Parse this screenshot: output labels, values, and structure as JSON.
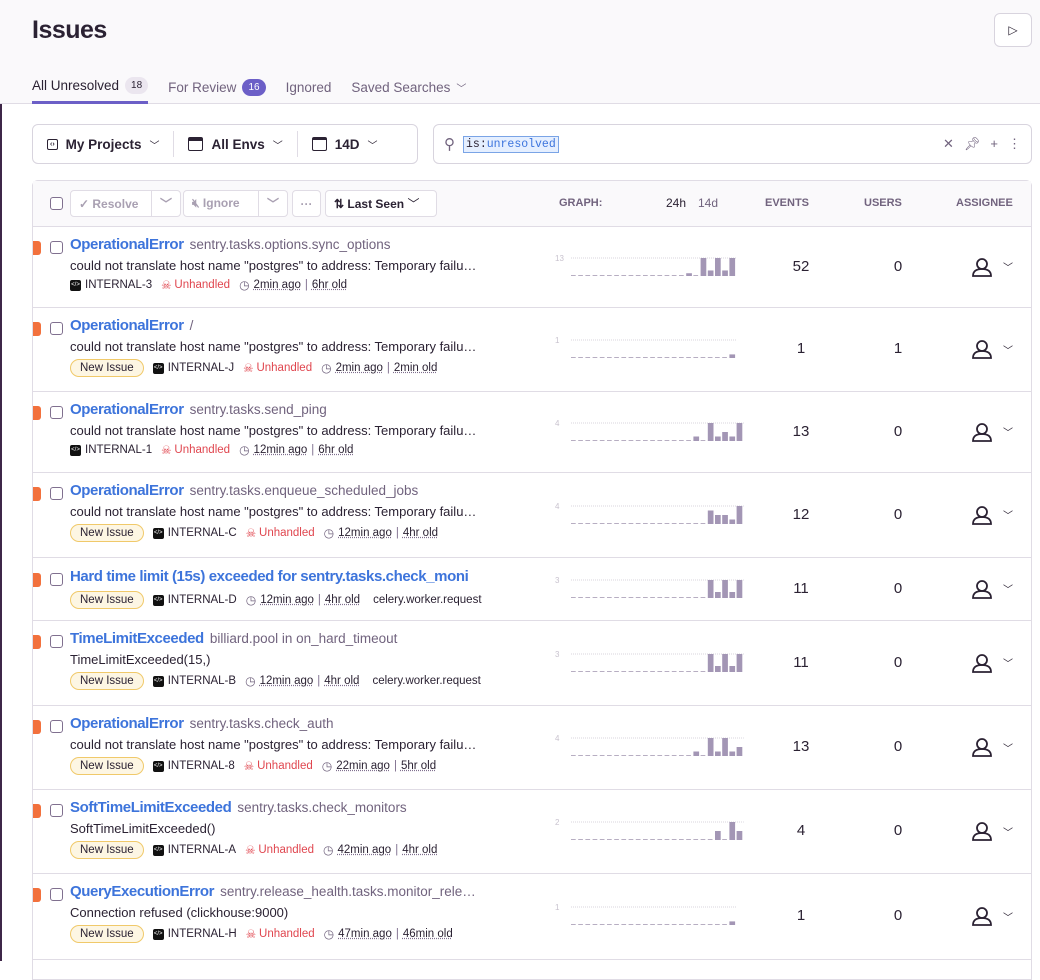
{
  "header": {
    "title": "Issues"
  },
  "tabs": [
    {
      "label": "All Unresolved",
      "count": "18",
      "active": true
    },
    {
      "label": "For Review",
      "count": "16"
    },
    {
      "label": "Ignored"
    },
    {
      "label": "Saved Searches"
    }
  ],
  "filters": {
    "projects": "My Projects",
    "envs": "All Envs",
    "period": "14D"
  },
  "search": {
    "key": "is",
    "sep": ":",
    "value": "unresolved"
  },
  "actions": {
    "resolve": "Resolve",
    "ignore": "Ignore",
    "more": "···",
    "sort": "Last Seen"
  },
  "columns": {
    "graph": "GRAPH:",
    "period_24h": "24h",
    "period_14d": "14d",
    "events": "EVENTS",
    "users": "USERS",
    "assignee": "ASSIGNEE"
  },
  "colors": {
    "accent": "#6c5fc7",
    "link": "#3d74db",
    "error_level": "#f2713d",
    "unhandled": "#e0464f"
  },
  "issues": [
    {
      "title": "OperationalError",
      "location": "sentry.tasks.options.sync_options",
      "message": "could not translate host name \"postgres\" to address: Temporary failu…",
      "new": false,
      "short_id": "INTERNAL-3",
      "unhandled": "Unhandled",
      "last_seen": "2min ago",
      "age": "6hr old",
      "tag": "",
      "events": "52",
      "users": "0",
      "graph_max": "13",
      "graph": [
        0,
        0,
        0,
        0,
        0,
        0,
        0,
        0,
        0,
        0,
        0,
        0,
        0,
        0,
        0,
        0,
        2,
        0,
        13,
        4,
        13,
        4,
        13
      ]
    },
    {
      "title": "OperationalError",
      "location": "/",
      "message": "could not translate host name \"postgres\" to address: Temporary failu…",
      "new": true,
      "short_id": "INTERNAL-J",
      "unhandled": "Unhandled",
      "last_seen": "2min ago",
      "age": "2min old",
      "tag": "",
      "events": "1",
      "users": "1",
      "graph_max": "1",
      "graph": [
        0,
        0,
        0,
        0,
        0,
        0,
        0,
        0,
        0,
        0,
        0,
        0,
        0,
        0,
        0,
        0,
        0,
        0,
        0,
        0,
        0,
        0,
        0.2
      ]
    },
    {
      "title": "OperationalError",
      "location": "sentry.tasks.send_ping",
      "message": "could not translate host name \"postgres\" to address: Temporary failu…",
      "new": false,
      "short_id": "INTERNAL-1",
      "unhandled": "Unhandled",
      "last_seen": "12min ago",
      "age": "6hr old",
      "tag": "",
      "events": "13",
      "users": "0",
      "graph_max": "4",
      "graph": [
        0,
        0,
        0,
        0,
        0,
        0,
        0,
        0,
        0,
        0,
        0,
        0,
        0,
        0,
        0,
        0,
        0,
        1,
        0,
        4,
        1,
        2,
        1,
        4
      ]
    },
    {
      "title": "OperationalError",
      "location": "sentry.tasks.enqueue_scheduled_jobs",
      "message": "could not translate host name \"postgres\" to address: Temporary failu…",
      "new": true,
      "short_id": "INTERNAL-C",
      "unhandled": "Unhandled",
      "last_seen": "12min ago",
      "age": "4hr old",
      "tag": "",
      "events": "12",
      "users": "0",
      "graph_max": "4",
      "graph": [
        0,
        0,
        0,
        0,
        0,
        0,
        0,
        0,
        0,
        0,
        0,
        0,
        0,
        0,
        0,
        0,
        0,
        0,
        0,
        3,
        2,
        2,
        1,
        4
      ]
    },
    {
      "title": "Hard time limit (15s) exceeded for sentry.tasks.check_moni",
      "location": "",
      "message": "",
      "new": true,
      "short_id": "INTERNAL-D",
      "unhandled": "",
      "last_seen": "12min ago",
      "age": "4hr old",
      "tag": "celery.worker.request",
      "events": "11",
      "users": "0",
      "graph_max": "3",
      "graph": [
        0,
        0,
        0,
        0,
        0,
        0,
        0,
        0,
        0,
        0,
        0,
        0,
        0,
        0,
        0,
        0,
        0,
        0,
        0,
        3,
        1,
        3,
        1,
        3
      ]
    },
    {
      "title": "TimeLimitExceeded",
      "location": "billiard.pool in on_hard_timeout",
      "message": "TimeLimitExceeded(15,)",
      "new": true,
      "short_id": "INTERNAL-B",
      "unhandled": "",
      "last_seen": "12min ago",
      "age": "4hr old",
      "tag": "celery.worker.request",
      "events": "11",
      "users": "0",
      "graph_max": "3",
      "graph": [
        0,
        0,
        0,
        0,
        0,
        0,
        0,
        0,
        0,
        0,
        0,
        0,
        0,
        0,
        0,
        0,
        0,
        0,
        0,
        3,
        1,
        3,
        1,
        3
      ]
    },
    {
      "title": "OperationalError",
      "location": "sentry.tasks.check_auth",
      "message": "could not translate host name \"postgres\" to address: Temporary failu…",
      "new": true,
      "short_id": "INTERNAL-8",
      "unhandled": "Unhandled",
      "last_seen": "22min ago",
      "age": "5hr old",
      "tag": "",
      "events": "13",
      "users": "0",
      "graph_max": "4",
      "graph": [
        0,
        0,
        0,
        0,
        0,
        0,
        0,
        0,
        0,
        0,
        0,
        0,
        0,
        0,
        0,
        0,
        0,
        1,
        0,
        4,
        1,
        4,
        1,
        2
      ]
    },
    {
      "title": "SoftTimeLimitExceeded",
      "location": "sentry.tasks.check_monitors",
      "message": "SoftTimeLimitExceeded()",
      "new": true,
      "short_id": "INTERNAL-A",
      "unhandled": "Unhandled",
      "last_seen": "42min ago",
      "age": "4hr old",
      "tag": "",
      "events": "4",
      "users": "0",
      "graph_max": "2",
      "graph": [
        0,
        0,
        0,
        0,
        0,
        0,
        0,
        0,
        0,
        0,
        0,
        0,
        0,
        0,
        0,
        0,
        0,
        0,
        0,
        0,
        1,
        0,
        2,
        1
      ]
    },
    {
      "title": "QueryExecutionError",
      "location": "sentry.release_health.tasks.monitor_rele…",
      "message": "Connection refused (clickhouse:9000)",
      "new": true,
      "short_id": "INTERNAL-H",
      "unhandled": "Unhandled",
      "last_seen": "47min ago",
      "age": "46min old",
      "tag": "",
      "events": "1",
      "users": "0",
      "graph_max": "1",
      "graph": [
        0,
        0,
        0,
        0,
        0,
        0,
        0,
        0,
        0,
        0,
        0,
        0,
        0,
        0,
        0,
        0,
        0,
        0,
        0,
        0,
        0,
        0,
        0.2
      ]
    }
  ],
  "new_issue_label": "New Issue"
}
